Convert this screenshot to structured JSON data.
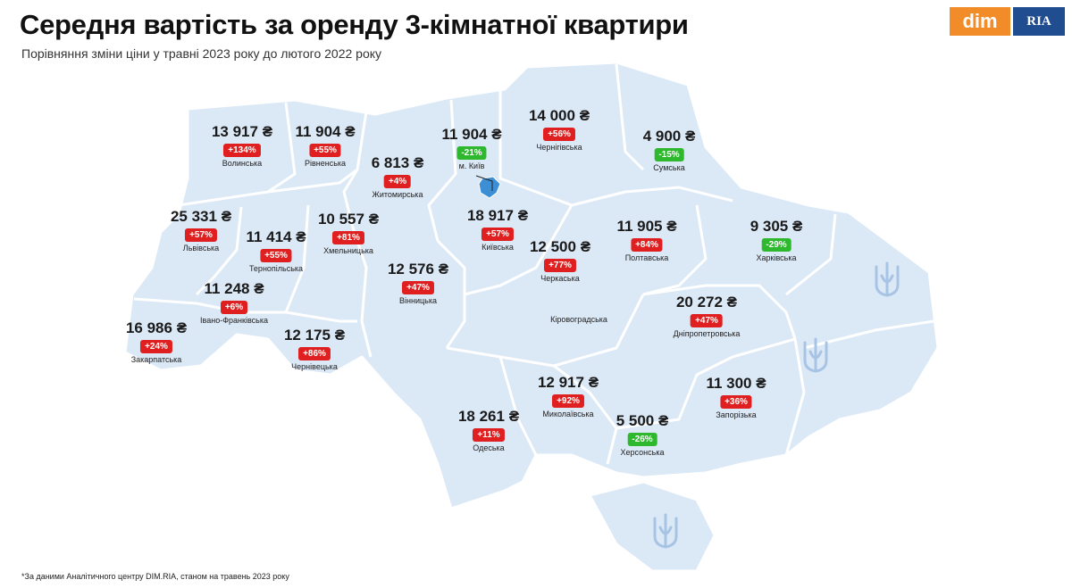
{
  "title": "Середня вартість за оренду 3-кімнатної квартири",
  "subtitle": "Порівняння зміни ціни у травні 2023 року до лютого 2022 року",
  "logo": {
    "dim": "dim",
    "ria": "RIA"
  },
  "colors": {
    "map_fill": "#dbe8f6",
    "border": "#ffffff",
    "increase": "#e02020",
    "decrease": "#2eb82e",
    "kyiv_city": "#3c8fd4"
  },
  "regions": [
    {
      "price": "13 917 ₴",
      "change": "+134%",
      "name": "Волинська"
    },
    {
      "price": "11 904 ₴",
      "change": "+55%",
      "name": "Рівненська"
    },
    {
      "price": "6 813 ₴",
      "change": "+4%",
      "name": "Житомирська"
    },
    {
      "price": "11 904 ₴",
      "change": "-21%",
      "name": "м. Київ"
    },
    {
      "price": "14 000 ₴",
      "change": "+56%",
      "name": "Чернігівська"
    },
    {
      "price": "4 900 ₴",
      "change": "-15%",
      "name": "Сумська"
    },
    {
      "price": "25 331 ₴",
      "change": "+57%",
      "name": "Львівська"
    },
    {
      "price": "11 414 ₴",
      "change": "+55%",
      "name": "Тернопільська"
    },
    {
      "price": "10 557 ₴",
      "change": "+81%",
      "name": "Хмельницька"
    },
    {
      "price": "18 917 ₴",
      "change": "+57%",
      "name": "Київська"
    },
    {
      "price": "11 905 ₴",
      "change": "+84%",
      "name": "Полтавська"
    },
    {
      "price": "9 305 ₴",
      "change": "-29%",
      "name": "Харківська"
    },
    {
      "price": "12 500 ₴",
      "change": "+77%",
      "name": "Черкаська"
    },
    {
      "price": "12 576 ₴",
      "change": "+47%",
      "name": "Вінницька"
    },
    {
      "price": "11 248 ₴",
      "change": "+6%",
      "name": "Івано-Франківська"
    },
    {
      "price": "16 986 ₴",
      "change": "+24%",
      "name": "Закарпатська"
    },
    {
      "price": "12 175 ₴",
      "change": "+86%",
      "name": "Чернівецька"
    },
    {
      "price": "20 272 ₴",
      "change": "+47%",
      "name": "Дніпропетровська"
    },
    {
      "price": "12 917 ₴",
      "change": "+92%",
      "name": "Миколаївська"
    },
    {
      "price": "18 261 ₴",
      "change": "+11%",
      "name": "Одеська"
    },
    {
      "price": "11 300 ₴",
      "change": "+36%",
      "name": "Запорізька"
    },
    {
      "price": "5 500 ₴",
      "change": "-26%",
      "name": "Херсонська"
    }
  ],
  "unlabeled_region": "Кіровоградська",
  "footnote": "*За даними Аналітичного центру DIM.RIA, станом на травень 2023 року"
}
